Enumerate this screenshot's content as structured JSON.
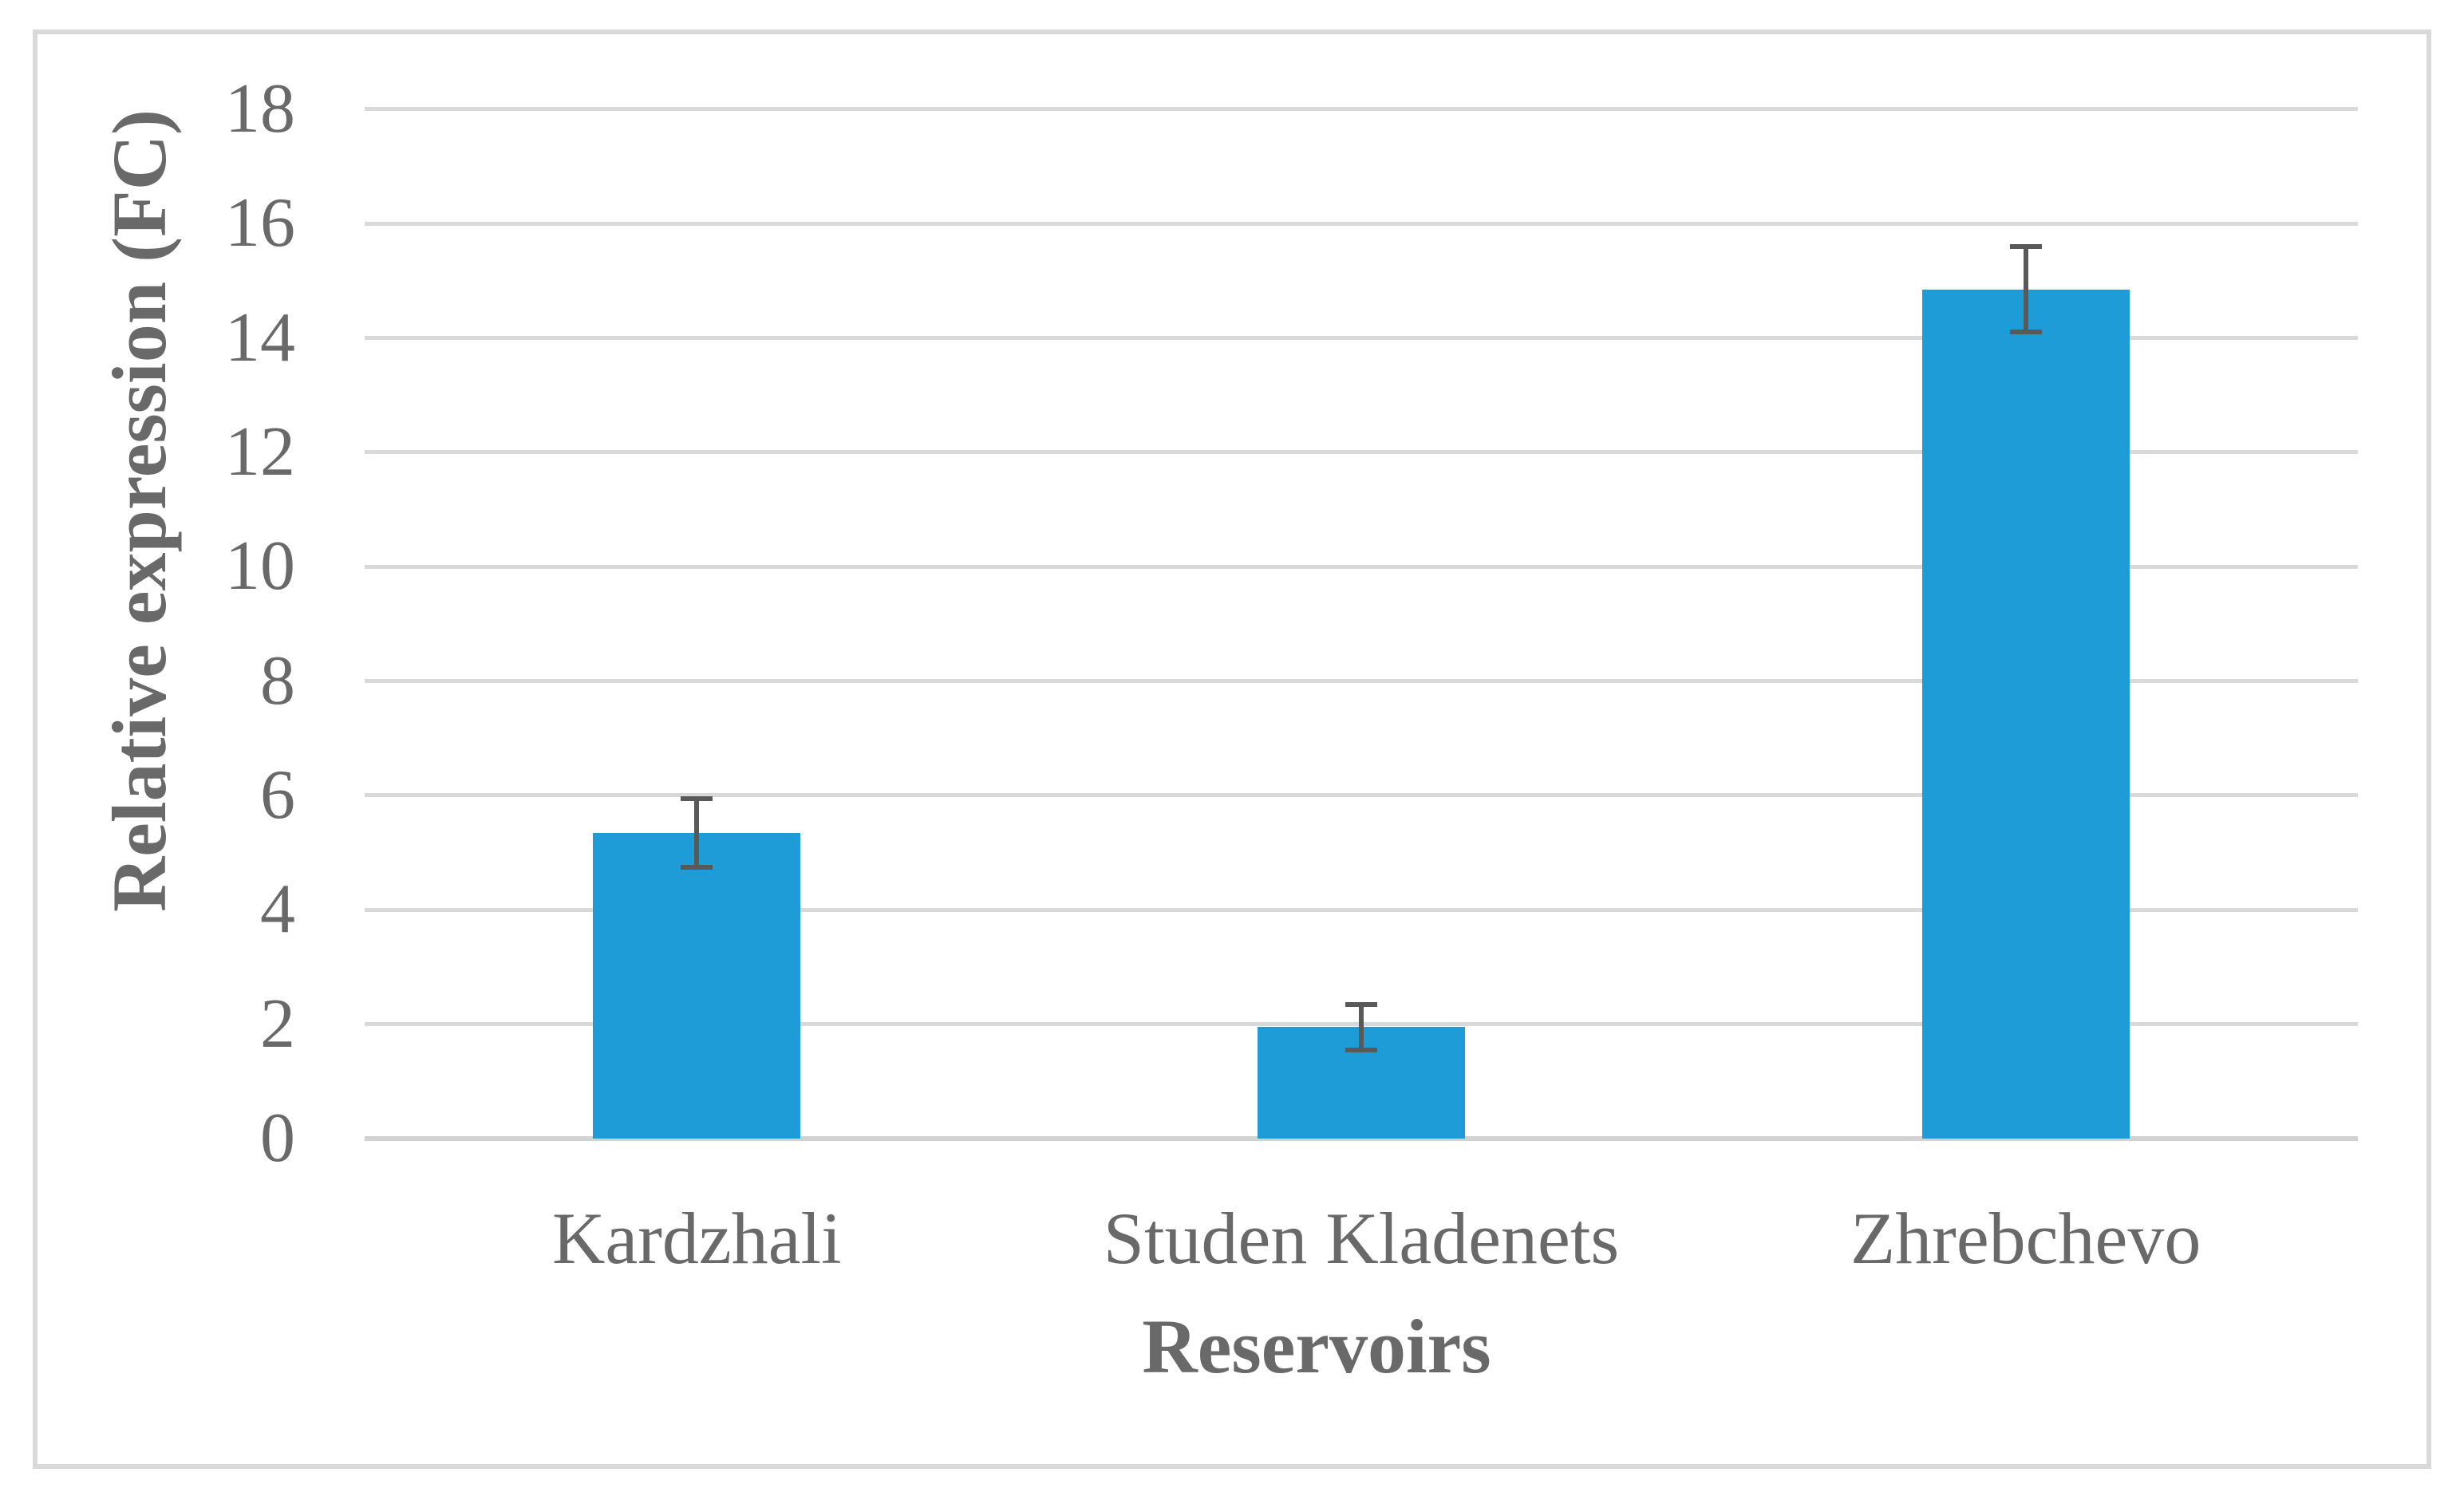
{
  "figure": {
    "background": "#FFFFFF"
  },
  "chart_data": {
    "type": "bar",
    "title": "",
    "categories": [
      "Kardzhali",
      "Studen Kladenets",
      "Zhrebchevo"
    ],
    "values": [
      5.35,
      1.95,
      14.85
    ],
    "error_bars": [
      0.6,
      0.4,
      0.75
    ],
    "xlabel": "Reservoirs",
    "ylabel": "Relative expression (FC)",
    "ylim": [
      0,
      18
    ],
    "yticks": [
      0,
      2,
      4,
      6,
      8,
      10,
      12,
      14,
      16,
      18
    ],
    "grid": "horizontal-gridlines-on",
    "legend": "none",
    "bar_color": "#1E9CD8",
    "error_bar_color": "#595959",
    "gridline_color": "#D9D9D9",
    "axis_line_color": "#D2D2D2",
    "text_color": "#696969",
    "frame_border_color": "#D9D9D9"
  }
}
